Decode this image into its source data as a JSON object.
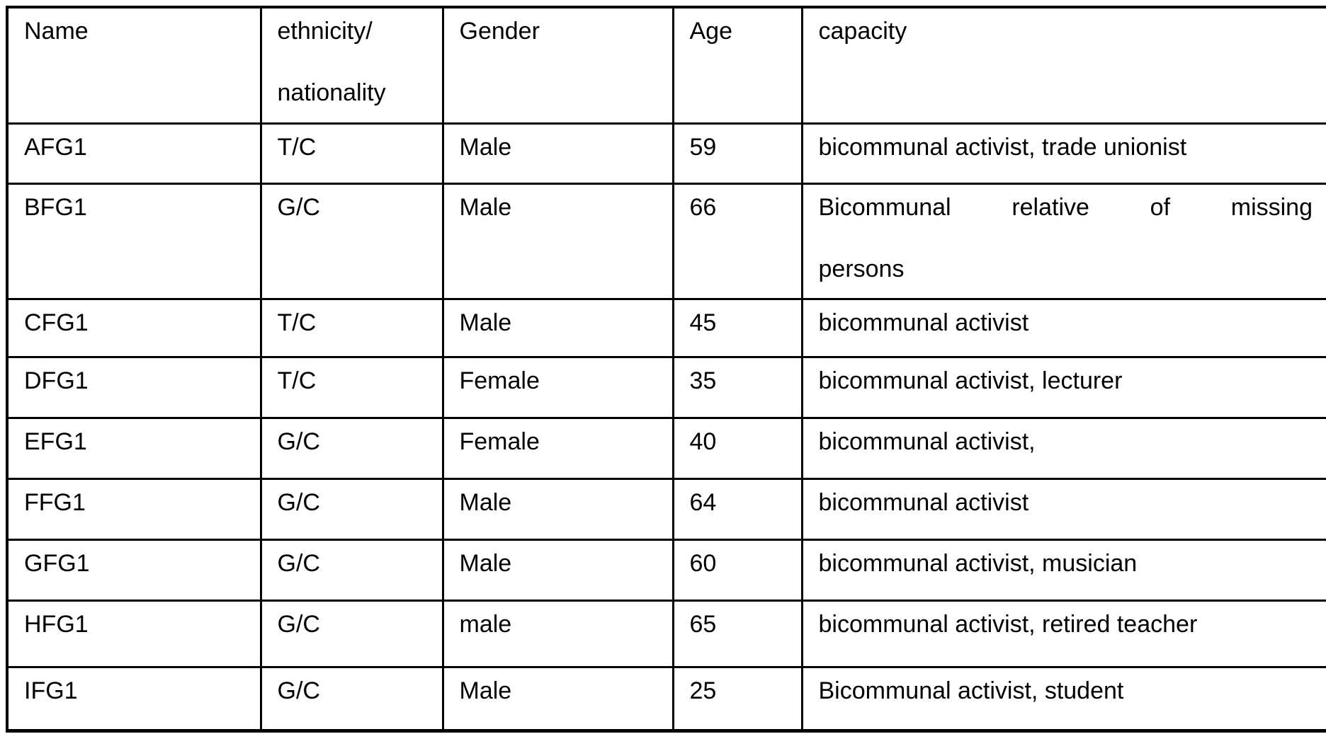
{
  "table": {
    "header": [
      {
        "id": "name",
        "lines": [
          "Name"
        ]
      },
      {
        "id": "ethnicity",
        "lines": [
          "ethnicity/",
          "nationality"
        ]
      },
      {
        "id": "gender",
        "lines": [
          "Gender"
        ]
      },
      {
        "id": "age",
        "lines": [
          "Age"
        ]
      },
      {
        "id": "capacity",
        "lines": [
          "capacity"
        ]
      }
    ],
    "rows": [
      {
        "cells": [
          {
            "lines": [
              "AFG1"
            ]
          },
          {
            "lines": [
              "T/C"
            ]
          },
          {
            "lines": [
              "Male"
            ]
          },
          {
            "lines": [
              "59"
            ]
          },
          {
            "lines": [
              "bicommunal activist, trade unionist"
            ]
          }
        ]
      },
      {
        "cells": [
          {
            "lines": [
              "BFG1"
            ]
          },
          {
            "lines": [
              "G/C"
            ]
          },
          {
            "lines": [
              "Male"
            ]
          },
          {
            "lines": [
              "66"
            ]
          },
          {
            "lines": [
              "Bicommunal relative of missing",
              "persons"
            ],
            "justify_lines": [
              0
            ]
          }
        ]
      },
      {
        "cells": [
          {
            "lines": [
              "CFG1"
            ]
          },
          {
            "lines": [
              "T/C"
            ]
          },
          {
            "lines": [
              "Male"
            ]
          },
          {
            "lines": [
              "45"
            ]
          },
          {
            "lines": [
              "bicommunal activist"
            ]
          }
        ]
      },
      {
        "cells": [
          {
            "lines": [
              "DFG1"
            ]
          },
          {
            "lines": [
              "T/C"
            ]
          },
          {
            "lines": [
              "Female"
            ]
          },
          {
            "lines": [
              "35"
            ]
          },
          {
            "lines": [
              "bicommunal activist, lecturer"
            ]
          }
        ]
      },
      {
        "cells": [
          {
            "lines": [
              "EFG1"
            ]
          },
          {
            "lines": [
              "G/C"
            ]
          },
          {
            "lines": [
              "Female"
            ]
          },
          {
            "lines": [
              "40"
            ]
          },
          {
            "lines": [
              "bicommunal activist,"
            ]
          }
        ]
      },
      {
        "cells": [
          {
            "lines": [
              "FFG1"
            ]
          },
          {
            "lines": [
              "G/C"
            ]
          },
          {
            "lines": [
              "Male"
            ]
          },
          {
            "lines": [
              "64"
            ]
          },
          {
            "lines": [
              "bicommunal activist"
            ]
          }
        ]
      },
      {
        "cells": [
          {
            "lines": [
              "GFG1"
            ]
          },
          {
            "lines": [
              "G/C"
            ]
          },
          {
            "lines": [
              "Male"
            ]
          },
          {
            "lines": [
              "60"
            ]
          },
          {
            "lines": [
              "bicommunal activist, musician"
            ]
          }
        ]
      },
      {
        "cells": [
          {
            "lines": [
              "HFG1"
            ]
          },
          {
            "lines": [
              "G/C"
            ]
          },
          {
            "lines": [
              "male"
            ]
          },
          {
            "lines": [
              "65"
            ]
          },
          {
            "lines": [
              "bicommunal activist, retired teacher"
            ]
          }
        ]
      },
      {
        "cells": [
          {
            "lines": [
              "IFG1"
            ]
          },
          {
            "lines": [
              "G/C"
            ]
          },
          {
            "lines": [
              "Male"
            ]
          },
          {
            "lines": [
              "25"
            ]
          },
          {
            "lines": [
              "Bicommunal activist, student"
            ]
          }
        ]
      }
    ],
    "colors": {
      "text": "#000000",
      "border": "#000000",
      "background": "#ffffff"
    }
  }
}
